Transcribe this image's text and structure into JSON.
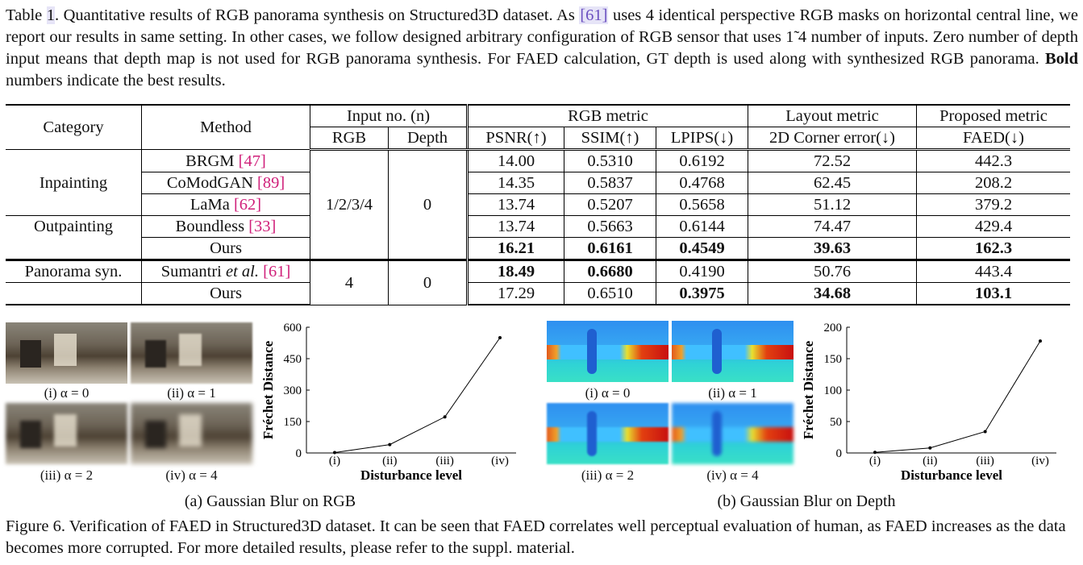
{
  "table_caption": {
    "label_prefix": "Table ",
    "label_num": "1",
    "part1": ". Quantitative results of RGB panorama synthesis on Structured3D dataset. As ",
    "cite1": "[61]",
    "part2": " uses 4 identical perspective RGB masks on horizontal central line, we report our results in same setting. In other cases, we follow designed arbitrary configuration of RGB sensor that uses 1̃ 4 number of inputs. Zero number of depth input means that depth map is not used for RGB panorama synthesis. For FAED calculation, GT depth is used along with synthesized RGB panorama. ",
    "bold": "Bold",
    "part3": " numbers indicate the best results."
  },
  "table": {
    "headers": {
      "category": "Category",
      "method": "Method",
      "input_no": "Input no. (n)",
      "rgb_metric": "RGB metric",
      "layout_metric": "Layout metric",
      "proposed_metric": "Proposed metric",
      "rgb": "RGB",
      "depth": "Depth",
      "psnr": "PSNR(↑)",
      "ssim": "SSIM(↑)",
      "lpips": "LPIPS(↓)",
      "corner": "2D Corner error(↓)",
      "faed": "FAED(↓)"
    },
    "groups": [
      {
        "categories": [
          "Inpainting",
          "Outpainting"
        ],
        "rgb_inputs": "1/2/3/4",
        "depth_inputs": "0",
        "rows": [
          {
            "method": "BRGM ",
            "cite": "[47]",
            "psnr": "14.00",
            "ssim": "0.5310",
            "lpips": "0.6192",
            "corner": "72.52",
            "faed": "442.3"
          },
          {
            "method": "CoModGAN ",
            "cite": "[89]",
            "psnr": "14.35",
            "ssim": "0.5837",
            "lpips": "0.4768",
            "corner": "62.45",
            "faed": "208.2"
          },
          {
            "method": "LaMa ",
            "cite": "[62]",
            "psnr": "13.74",
            "ssim": "0.5207",
            "lpips": "0.5658",
            "corner": "51.12",
            "faed": "379.2"
          },
          {
            "method": "Boundless ",
            "cite": "[33]",
            "psnr": "13.74",
            "ssim": "0.5663",
            "lpips": "0.6144",
            "corner": "74.47",
            "faed": "429.4"
          },
          {
            "method": "Ours",
            "cite": "",
            "psnr": "16.21",
            "ssim": "0.6161",
            "lpips": "0.4549",
            "corner": "39.63",
            "faed": "162.3"
          }
        ]
      },
      {
        "categories": [
          "Panorama syn."
        ],
        "rgb_inputs": "4",
        "depth_inputs": "0",
        "rows": [
          {
            "method": "Sumantri ",
            "method_italic": "et al.",
            "cite": " [61]",
            "psnr": "18.49",
            "ssim": "0.6680",
            "lpips": "0.4190",
            "corner": "50.76",
            "faed": "443.4"
          },
          {
            "method": "Ours",
            "cite": "",
            "psnr": "17.29",
            "ssim": "0.6510",
            "lpips": "0.3975",
            "corner": "34.68",
            "faed": "103.1"
          }
        ]
      }
    ]
  },
  "figure": {
    "rgb_panel": {
      "thumb_labels": [
        "(i) α = 0",
        "(ii) α = 1",
        "(iii) α = 2",
        "(iv) α = 4"
      ],
      "sublabel": "(a) Gaussian Blur on RGB"
    },
    "depth_panel": {
      "thumb_labels": [
        "(i) α = 0",
        "(ii) α = 1",
        "(iii) α = 2",
        "(iv) α = 4"
      ],
      "sublabel": "(b) Gaussian Blur on Depth"
    },
    "caption": "Figure 6. Verification of FAED in Structured3D dataset. It can be seen that FAED correlates well perceptual evaluation of human, as FAED increases as the data becomes more corrupted. For more detailed results, please refer to the suppl. material."
  },
  "chart_data": [
    {
      "type": "line",
      "title": "",
      "xlabel": "Disturbance level",
      "ylabel": "Fréchet Distance",
      "categories": [
        "(i)",
        "(ii)",
        "(iii)",
        "(iv)"
      ],
      "values": [
        2,
        40,
        172,
        550
      ],
      "yticks": [
        0,
        150,
        300,
        450,
        600
      ],
      "ylim": [
        0,
        600
      ],
      "grid": false
    },
    {
      "type": "line",
      "title": "",
      "xlabel": "Disturbance level",
      "ylabel": "Fréchet Distance",
      "categories": [
        "(i)",
        "(ii)",
        "(iii)",
        "(iv)"
      ],
      "values": [
        1,
        8,
        34,
        178
      ],
      "yticks": [
        0,
        50,
        100,
        150,
        200
      ],
      "ylim": [
        0,
        200
      ],
      "grid": false
    }
  ]
}
